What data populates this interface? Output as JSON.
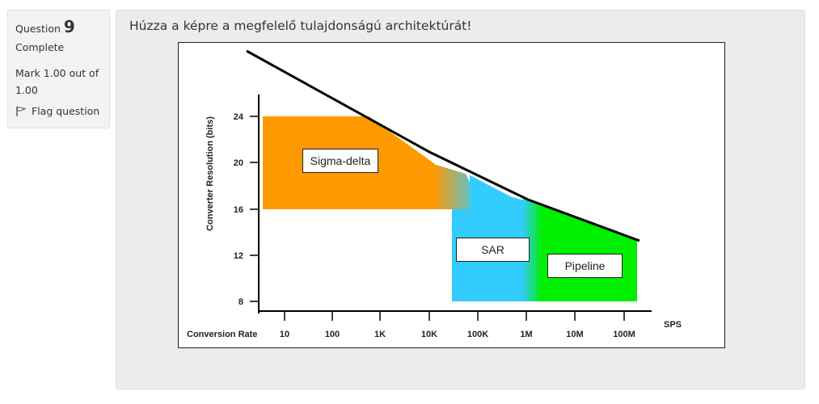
{
  "info": {
    "question_label": "Question",
    "question_number": "9",
    "state": "Complete",
    "grade": "Mark 1.00 out of 1.00",
    "flag_label": "Flag question"
  },
  "question": {
    "text": "Húzza a képre a megfelelő tulajdonságú architektúrát!"
  },
  "chart_data": {
    "type": "area",
    "ylabel": "Converter Resolution (bits)",
    "xlabel": "Conversion Rate",
    "x_unit": "SPS",
    "x_ticks": [
      "10",
      "100",
      "1K",
      "10K",
      "100K",
      "1M",
      "10M",
      "100M"
    ],
    "y_ticks": [
      "24",
      "20",
      "16",
      "12",
      "8"
    ],
    "regions": [
      {
        "name": "Sigma-delta",
        "color": "#FF9900"
      },
      {
        "name": "SAR",
        "color": "#33CCFF"
      },
      {
        "name": "Pipeline",
        "color": "#00EE00"
      }
    ]
  },
  "drop_labels": [
    "Sigma-delta",
    "SAR",
    "Pipeline"
  ]
}
